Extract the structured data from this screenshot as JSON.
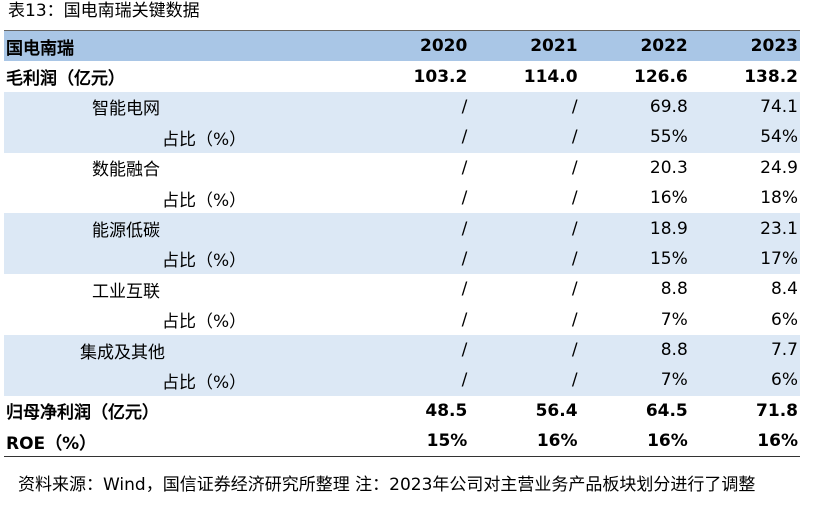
{
  "caption": "表13：国电南瑞关键数据",
  "table": {
    "header": [
      "国电南瑞",
      "2020",
      "2021",
      "2022",
      "2023"
    ],
    "rows": [
      {
        "label": "毛利润（亿元）",
        "values": [
          "103.2",
          "114.0",
          "126.6",
          "138.2"
        ]
      },
      {
        "label": "智能电网",
        "values": [
          "/",
          "/",
          "69.8",
          "74.1"
        ]
      },
      {
        "label": "占比（%）",
        "values": [
          "/",
          "/",
          "55%",
          "54%"
        ]
      },
      {
        "label": "数能融合",
        "values": [
          "/",
          "/",
          "20.3",
          "24.9"
        ]
      },
      {
        "label": "占比（%）",
        "values": [
          "/",
          "/",
          "16%",
          "18%"
        ]
      },
      {
        "label": "能源低碳",
        "values": [
          "/",
          "/",
          "18.9",
          "23.1"
        ]
      },
      {
        "label": "占比（%）",
        "values": [
          "/",
          "/",
          "15%",
          "17%"
        ]
      },
      {
        "label": "工业互联",
        "values": [
          "/",
          "/",
          "8.8",
          "8.4"
        ]
      },
      {
        "label": "占比（%）",
        "values": [
          "/",
          "/",
          "7%",
          "6%"
        ]
      },
      {
        "label": "集成及其他",
        "values": [
          "/",
          "/",
          "8.8",
          "7.7"
        ]
      },
      {
        "label": "占比（%）",
        "values": [
          "/",
          "/",
          "7%",
          "6%"
        ]
      },
      {
        "label": "归母净利润（亿元）",
        "values": [
          "48.5",
          "56.4",
          "64.5",
          "71.8"
        ]
      },
      {
        "label": "ROE（%）",
        "values": [
          "15%",
          "16%",
          "16%",
          "16%"
        ]
      }
    ]
  },
  "note": "资料来源：Wind，国信证券经济研究所整理 注：2023年公司对主营业务产品板块划分进行了调整"
}
